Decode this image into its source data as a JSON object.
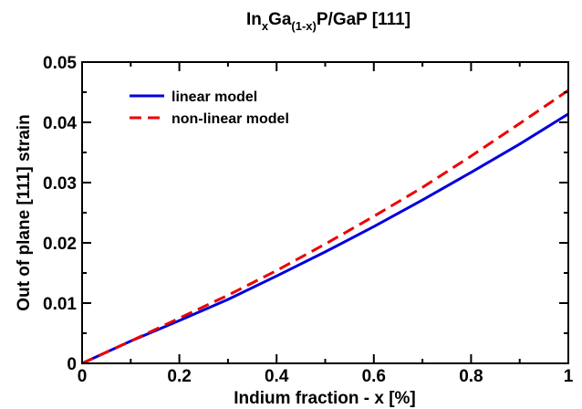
{
  "chart_data": {
    "type": "line",
    "title": {
      "parts": [
        {
          "text": "In",
          "sub": false
        },
        {
          "text": "x",
          "sub": true
        },
        {
          "text": "Ga",
          "sub": false
        },
        {
          "text": "(1-x)",
          "sub": true
        },
        {
          "text": "P/GaP [111]",
          "sub": false
        }
      ]
    },
    "xlabel": "Indium fraction - x  [%]",
    "ylabel": "Out of plane [111] strain",
    "xlim": [
      0,
      1
    ],
    "ylim": [
      0,
      0.05
    ],
    "x_ticks": [
      0,
      0.2,
      0.4,
      0.6,
      0.8,
      1
    ],
    "x_tick_labels": [
      "0",
      "0.2",
      "0.4",
      "0.6",
      "0.8",
      "1"
    ],
    "y_ticks": [
      0,
      0.01,
      0.02,
      0.03,
      0.04,
      0.05
    ],
    "y_tick_labels": [
      "0",
      "0.01",
      "0.02",
      "0.03",
      "0.04",
      "0.05"
    ],
    "legend_position": "top-left",
    "grid": false,
    "series": [
      {
        "name": "linear model",
        "color": "#0000dd",
        "dash": "solid",
        "x": [
          0,
          0.1,
          0.2,
          0.3,
          0.4,
          0.5,
          0.6,
          0.7,
          0.8,
          0.9,
          1.0
        ],
        "y": [
          0,
          0.0037,
          0.0071,
          0.0106,
          0.0145,
          0.0185,
          0.0227,
          0.0271,
          0.0317,
          0.0364,
          0.0414
        ]
      },
      {
        "name": "non-linear model",
        "color": "#ee0000",
        "dash": "dashed",
        "x": [
          0,
          0.1,
          0.2,
          0.3,
          0.4,
          0.5,
          0.6,
          0.7,
          0.8,
          0.9,
          1.0
        ],
        "y": [
          0,
          0.0037,
          0.0075,
          0.0113,
          0.0154,
          0.0198,
          0.0244,
          0.0292,
          0.0344,
          0.0398,
          0.0453
        ]
      }
    ]
  }
}
